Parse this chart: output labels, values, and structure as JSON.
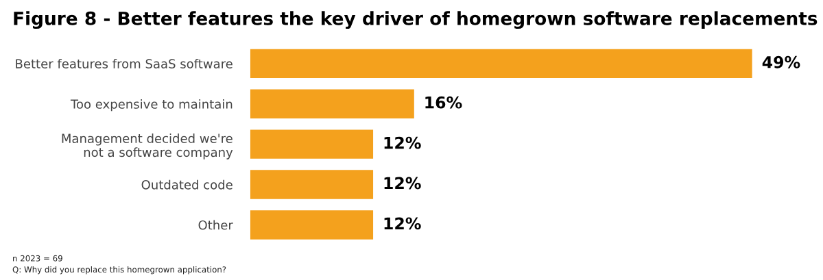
{
  "chart_data": {
    "type": "bar",
    "orientation": "horizontal",
    "title": "Figure 8 - Better features the key driver of homegrown software replacements",
    "categories": [
      "Better features from SaaS software",
      "Too expensive to maintain",
      "Management decided we're\nnot a software company",
      "Outdated code",
      "Other"
    ],
    "values": [
      49,
      16,
      12,
      12,
      12
    ],
    "value_labels": [
      "49%",
      "16%",
      "12%",
      "12%",
      "12%"
    ],
    "color": "#f4a11d",
    "grid": false,
    "legend": false,
    "tick_labels": "y",
    "annotations": [
      "n 2023 = 69",
      "Q: Why did you replace this homegrown application?"
    ]
  }
}
